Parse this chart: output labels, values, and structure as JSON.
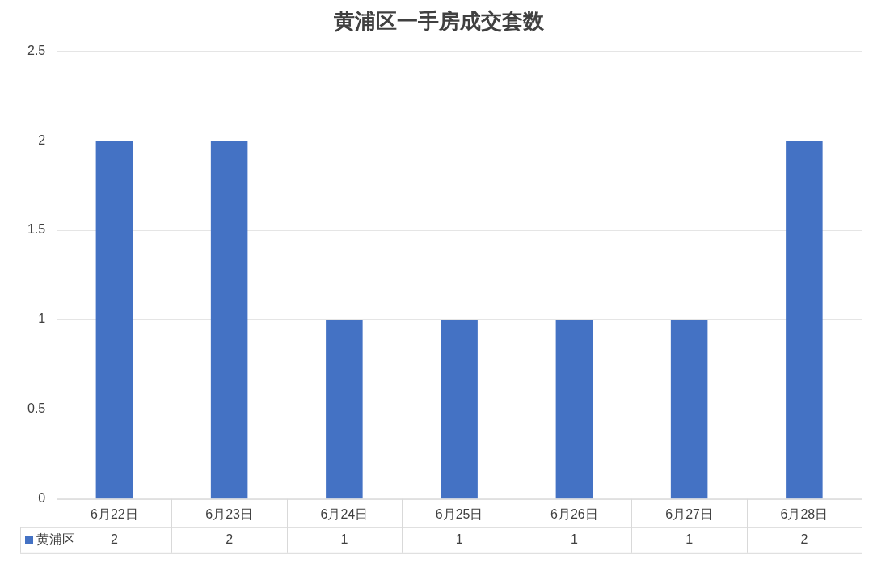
{
  "chart_data": {
    "type": "bar",
    "title": "黄浦区一手房成交套数",
    "categories": [
      "6月22日",
      "6月23日",
      "6月24日",
      "6月25日",
      "6月26日",
      "6月27日",
      "6月28日"
    ],
    "series": [
      {
        "name": "黄浦区",
        "color": "#4472c4",
        "values": [
          2,
          2,
          1,
          1,
          1,
          1,
          2
        ]
      }
    ],
    "ylim": [
      0,
      2.5
    ],
    "yticks": [
      0,
      0.5,
      1,
      1.5,
      2,
      2.5
    ],
    "grid": "y",
    "legend": "bottom",
    "data_labels": true
  }
}
